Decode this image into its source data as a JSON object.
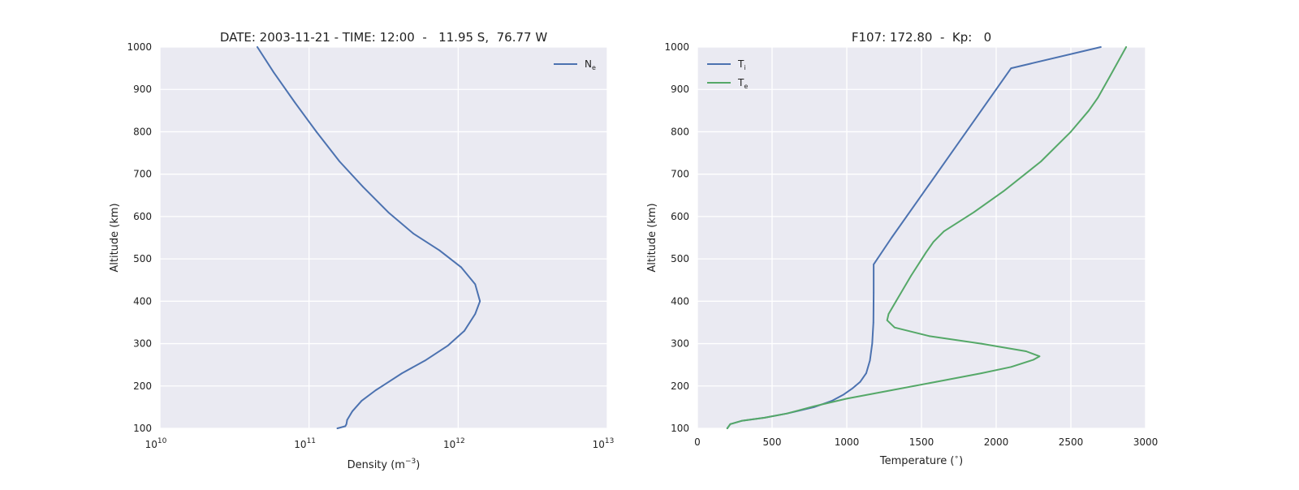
{
  "chart_data": [
    {
      "type": "line",
      "title": "DATE: 2003-11-21 - TIME: 12:00  -   11.95 S,  76.77 W",
      "xlabel": "Density (m$^{-3}$)",
      "xlabel_text": "Density (m",
      "xlabel_sup": "−3",
      "xlabel_tail": ")",
      "ylabel": "Altitude (km)",
      "xscale": "log",
      "xlim": [
        10000000000.0,
        10000000000000.0
      ],
      "ylim": [
        100,
        1000
      ],
      "xtick_labels": [
        {
          "value": 10000000000.0,
          "base": "10",
          "exp": "10"
        },
        {
          "value": 100000000000.0,
          "base": "10",
          "exp": "11"
        },
        {
          "value": 1000000000000.0,
          "base": "10",
          "exp": "12"
        },
        {
          "value": 10000000000000.0,
          "base": "10",
          "exp": "13"
        }
      ],
      "yticks": [
        100,
        200,
        300,
        400,
        500,
        600,
        700,
        800,
        900,
        1000
      ],
      "grid": true,
      "legend_position": "top-right",
      "series": [
        {
          "name": "Ne",
          "label_main": "N",
          "label_sub": "e",
          "color": "#4c72b0",
          "points": [
            [
              155000000000.0,
              100
            ],
            [
              175000000000.0,
              105
            ],
            [
              178000000000.0,
              110
            ],
            [
              180000000000.0,
              120
            ],
            [
              195000000000.0,
              140
            ],
            [
              225000000000.0,
              165
            ],
            [
              280000000000.0,
              190
            ],
            [
              310000000000.0,
              200
            ],
            [
              420000000000.0,
              230
            ],
            [
              600000000000.0,
              260
            ],
            [
              850000000000.0,
              295
            ],
            [
              1100000000000.0,
              330
            ],
            [
              1300000000000.0,
              370
            ],
            [
              1400000000000.0,
              400
            ],
            [
              1300000000000.0,
              440
            ],
            [
              1050000000000.0,
              480
            ],
            [
              750000000000.0,
              520
            ],
            [
              500000000000.0,
              560
            ],
            [
              340000000000.0,
              610
            ],
            [
              230000000000.0,
              670
            ],
            [
              160000000000.0,
              730
            ],
            [
              112000000000.0,
              800
            ],
            [
              80000000000.0,
              870
            ],
            [
              58000000000.0,
              940
            ],
            [
              45000000000.0,
              1000
            ]
          ]
        }
      ]
    },
    {
      "type": "line",
      "title": "F107: 172.80  -  Kp:   0",
      "xlabel": "Temperature ($^\\circ$)",
      "xlabel_text": "Temperature (",
      "xlabel_sup": "∘",
      "xlabel_tail": ")",
      "ylabel": "Altitude (km)",
      "xscale": "linear",
      "xlim": [
        0,
        3000
      ],
      "ylim": [
        100,
        1000
      ],
      "xticks": [
        0,
        500,
        1000,
        1500,
        2000,
        2500,
        3000
      ],
      "yticks": [
        100,
        200,
        300,
        400,
        500,
        600,
        700,
        800,
        900,
        1000
      ],
      "grid": true,
      "legend_position": "top-left",
      "series": [
        {
          "name": "Ti",
          "label_main": "T",
          "label_sub": "i",
          "color": "#4c72b0",
          "points": [
            [
              200,
              100
            ],
            [
              220,
              110
            ],
            [
              300,
              118
            ],
            [
              450,
              125
            ],
            [
              600,
              135
            ],
            [
              780,
              150
            ],
            [
              900,
              165
            ],
            [
              980,
              180
            ],
            [
              1040,
              195
            ],
            [
              1090,
              210
            ],
            [
              1130,
              230
            ],
            [
              1155,
              260
            ],
            [
              1170,
              300
            ],
            [
              1178,
              350
            ],
            [
              1180,
              420
            ],
            [
              1180,
              487
            ],
            [
              1300,
              550
            ],
            [
              1500,
              650
            ],
            [
              1700,
              750
            ],
            [
              1900,
              850
            ],
            [
              2100,
              950
            ],
            [
              2700,
              1000
            ]
          ]
        },
        {
          "name": "Te",
          "label_main": "T",
          "label_sub": "e",
          "color": "#55a868",
          "points": [
            [
              200,
              100
            ],
            [
              220,
              110
            ],
            [
              300,
              118
            ],
            [
              450,
              125
            ],
            [
              600,
              135
            ],
            [
              780,
              152
            ],
            [
              1000,
              170
            ],
            [
              1300,
              190
            ],
            [
              1600,
              210
            ],
            [
              1900,
              230
            ],
            [
              2100,
              245
            ],
            [
              2250,
              262
            ],
            [
              2290,
              270
            ],
            [
              2200,
              282
            ],
            [
              1900,
              300
            ],
            [
              1550,
              318
            ],
            [
              1320,
              338
            ],
            [
              1270,
              355
            ],
            [
              1280,
              370
            ],
            [
              1330,
              400
            ],
            [
              1430,
              460
            ],
            [
              1530,
              515
            ],
            [
              1580,
              540
            ],
            [
              1650,
              565
            ],
            [
              1850,
              610
            ],
            [
              2050,
              660
            ],
            [
              2300,
              730
            ],
            [
              2500,
              800
            ],
            [
              2620,
              850
            ],
            [
              2680,
              880
            ],
            [
              2760,
              930
            ],
            [
              2870,
              1000
            ]
          ]
        }
      ]
    }
  ]
}
